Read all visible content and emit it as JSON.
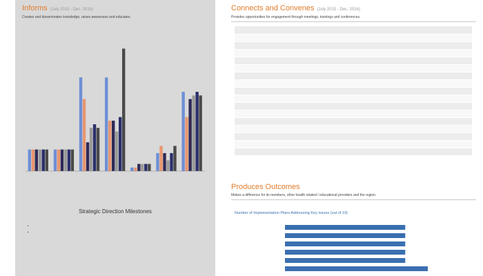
{
  "inform": {
    "title": "Informs",
    "date_range": "(July 2015 - Dec. 2016)",
    "subtitle": "Creates and disseminates knowledge, raises awareness and educates."
  },
  "chart_data": [
    {
      "type": "bar",
      "title": "",
      "categories": [
        "",
        "",
        "",
        "",
        "",
        "",
        ""
      ],
      "series": [
        {
          "values": [
            6,
            6,
            26,
            26,
            1,
            5,
            22
          ]
        },
        {
          "values": [
            6,
            6,
            20,
            14,
            1,
            7,
            15
          ]
        },
        {
          "values": [
            6,
            6,
            8,
            14,
            2,
            5,
            20
          ]
        },
        {
          "values": [
            6,
            6,
            12,
            11,
            2,
            3,
            21
          ]
        },
        {
          "values": [
            6,
            6,
            13,
            15,
            2,
            5,
            22
          ]
        },
        {
          "values": [
            6,
            6,
            12,
            34,
            2,
            7,
            21
          ]
        }
      ],
      "colors": [
        "#6f8fd6",
        "#e89670",
        "#2f2a55",
        "#9a9a9a",
        "#2a2f6a",
        "#4a4a4a"
      ],
      "ylim": [
        0,
        36
      ],
      "grid": false,
      "legend": "none"
    },
    {
      "type": "bar",
      "orientation": "horizontal",
      "title": "Number of Implementation Plans Addressing Key Issues (out of 19)",
      "categories": [
        "",
        "",
        "",
        "",
        "",
        ""
      ],
      "values": [
        16,
        16,
        16,
        16,
        16,
        19
      ],
      "xlim": [
        0,
        19
      ],
      "colors": [
        "#3a6fb0"
      ]
    }
  ],
  "sdm": {
    "title": "Strategic Direction Milestones",
    "items": [
      "",
      "",
      ""
    ]
  },
  "connects": {
    "title": "Connects and Convenes",
    "date_range": "(July 2015 - Dec. 2016)",
    "subtitle": "Provides opportunities for engagement through meetings, trainings and conferences.",
    "rows": [
      {
        "count": "",
        "activity": ""
      },
      {
        "count": "",
        "activity": ""
      },
      {
        "count": "",
        "activity": ""
      },
      {
        "count": "",
        "activity": ""
      },
      {
        "count": "",
        "activity": ""
      },
      {
        "count": "",
        "activity": ""
      },
      {
        "count": "",
        "activity": ""
      },
      {
        "count": "",
        "activity": ""
      },
      {
        "count": "",
        "activity": ""
      },
      {
        "count": "",
        "activity": ""
      },
      {
        "count": "",
        "activity": ""
      },
      {
        "count": "",
        "activity": ""
      },
      {
        "count": "",
        "activity": ""
      },
      {
        "count": "",
        "activity": ""
      },
      {
        "count": "",
        "activity": ""
      },
      {
        "count": "",
        "activity": ""
      },
      {
        "count": "",
        "activity": ""
      }
    ]
  },
  "produces": {
    "title": "Produces Outcomes",
    "subtitle": "Makes a difference for its members, other health related / educational providers and the region.",
    "note": ""
  }
}
